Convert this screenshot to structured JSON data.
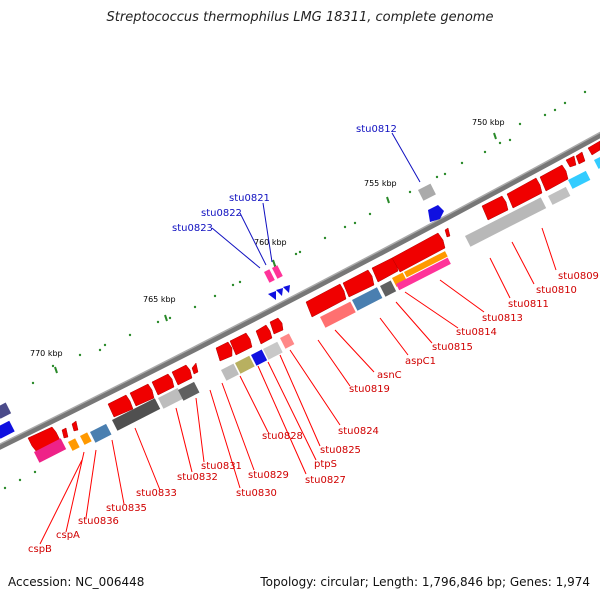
{
  "title": "Streptococcus thermophilus LMG 18311, complete genome",
  "footer": {
    "accession": "Accession: NC_006448",
    "summary": "Topology: circular; Length: 1,796,846 bp; Genes: 1,974"
  },
  "kbp_labels": [
    "750 kbp",
    "755 kbp",
    "760 kbp",
    "765 kbp",
    "770 kbp"
  ],
  "genes_red": [
    "stu0809",
    "stu0810",
    "stu0811",
    "stu0813",
    "stu0814",
    "stu0815",
    "aspC1",
    "asnC",
    "stu0819",
    "stu0824",
    "stu0825",
    "ptpS",
    "stu0827",
    "stu0828",
    "stu0829",
    "stu0830",
    "stu0831",
    "stu0832",
    "stu0833",
    "stu0835",
    "stu0836",
    "cspA",
    "cspB"
  ],
  "genes_blue": [
    "stu0812",
    "stu0821",
    "stu0822",
    "stu0823"
  ],
  "colors": {
    "forward": "#ff0000",
    "reverse_gray": "#a0a0a0",
    "dark_gray": "#555555",
    "pink": "#ff3399",
    "orange": "#ff9900",
    "blue": "#1010e0",
    "steel": "#4a7fb0",
    "cyan": "#33ccff",
    "khaki": "#b8b060",
    "dots": "#2a8a2a",
    "backbone": "#777777"
  }
}
